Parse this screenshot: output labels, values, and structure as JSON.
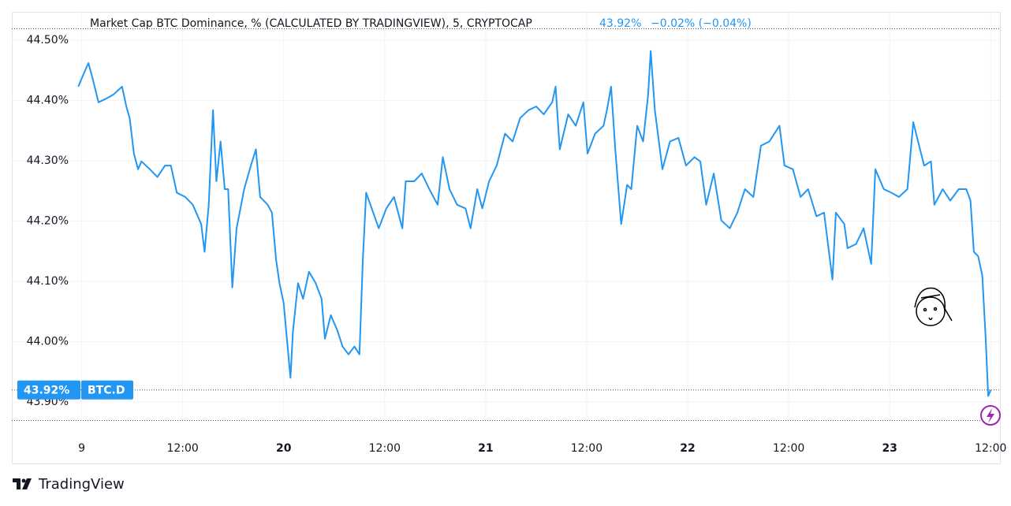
{
  "chart_data": {
    "type": "line",
    "title": "Market Cap BTC Dominance, % (CALCULATED BY TRADINGVIEW), 5, CRYPTOCAP",
    "change": "−0.02% (−0.04%)",
    "last_value": {
      "value": 43.92,
      "label": "43.92%"
    },
    "brand": "TradingView",
    "grid": true,
    "xlim": [
      -8.3,
      109.1
    ],
    "ylim": [
      43.87,
      44.547
    ],
    "yticks": [
      {
        "value": 43.9,
        "label": "43.90%"
      },
      {
        "value": 44.0,
        "label": "44.00%"
      },
      {
        "value": 44.1,
        "label": "44.10%"
      },
      {
        "value": 44.2,
        "label": "44.20%"
      },
      {
        "value": 44.3,
        "label": "44.30%"
      },
      {
        "value": 44.4,
        "label": "44.40%"
      },
      {
        "value": 44.5,
        "label": "44.50%"
      }
    ],
    "xticks": [
      {
        "value": 0,
        "label": "9"
      },
      {
        "value": 12,
        "label": "12:00"
      },
      {
        "value": 24,
        "label": "20"
      },
      {
        "value": 36,
        "label": "12:00"
      },
      {
        "value": 48,
        "label": "21"
      },
      {
        "value": 60,
        "label": "12:00"
      },
      {
        "value": 72,
        "label": "22"
      },
      {
        "value": 84,
        "label": "12:00"
      },
      {
        "value": 96,
        "label": "23"
      },
      {
        "value": 108,
        "label": "12:00"
      }
    ],
    "x": [
      -0.4,
      0.2,
      0.8,
      1.3,
      2.0,
      2.9,
      3.8,
      4.8,
      5.3,
      5.7,
      6.2,
      6.7,
      7.1,
      8.1,
      9.0,
      9.9,
      10.6,
      11.3,
      12.3,
      13.2,
      14.2,
      14.6,
      15.1,
      15.6,
      16.0,
      16.5,
      17.0,
      17.4,
      17.9,
      18.4,
      19.3,
      20.1,
      20.7,
      21.2,
      22.1,
      22.6,
      23.1,
      23.5,
      24.0,
      24.8,
      25.1,
      25.7,
      26.3,
      27.0,
      27.8,
      28.5,
      28.9,
      29.6,
      30.4,
      31.0,
      31.7,
      32.4,
      33.0,
      33.4,
      33.8,
      34.3,
      35.3,
      36.2,
      37.1,
      38.1,
      38.5,
      39.5,
      40.4,
      41.3,
      42.3,
      42.9,
      43.7,
      44.6,
      45.6,
      46.2,
      47.0,
      47.6,
      48.4,
      49.3,
      50.3,
      51.2,
      52.1,
      53.1,
      54.0,
      54.9,
      55.9,
      56.3,
      56.8,
      57.8,
      58.7,
      59.6,
      60.1,
      61.0,
      62.0,
      62.4,
      62.9,
      63.4,
      64.1,
      64.8,
      65.3,
      66.0,
      66.7,
      67.3,
      67.6,
      68.1,
      69.0,
      69.9,
      70.9,
      71.8,
      72.8,
      73.5,
      74.2,
      75.1,
      76.0,
      77.0,
      77.9,
      78.8,
      79.8,
      80.7,
      81.7,
      82.9,
      83.5,
      84.5,
      85.4,
      86.3,
      87.3,
      88.2,
      89.2,
      89.6,
      90.6,
      91.0,
      92.0,
      92.9,
      93.8,
      94.3,
      95.3,
      96.2,
      97.1,
      98.1,
      98.8,
      99.5,
      100.1,
      100.9,
      101.3,
      102.3,
      103.2,
      104.2,
      105.1,
      105.6,
      106.0,
      106.5,
      107.0,
      107.4,
      107.7,
      108.0
    ],
    "series": [
      {
        "name": "BTC.D",
        "color": "#2196f3",
        "values": [
          44.423,
          44.443,
          44.462,
          44.436,
          44.397,
          44.403,
          44.41,
          44.423,
          44.39,
          44.371,
          44.312,
          44.286,
          44.299,
          44.286,
          44.273,
          44.292,
          44.292,
          44.247,
          44.24,
          44.227,
          44.195,
          44.149,
          44.227,
          44.384,
          44.266,
          44.332,
          44.253,
          44.253,
          44.09,
          44.188,
          44.253,
          44.292,
          44.319,
          44.24,
          44.227,
          44.214,
          44.136,
          44.097,
          44.064,
          43.94,
          44.018,
          44.097,
          44.071,
          44.116,
          44.097,
          44.071,
          44.005,
          44.044,
          44.018,
          43.992,
          43.979,
          43.992,
          43.979,
          44.136,
          44.247,
          44.227,
          44.188,
          44.221,
          44.24,
          44.188,
          44.266,
          44.266,
          44.279,
          44.253,
          44.227,
          44.306,
          44.253,
          44.227,
          44.221,
          44.188,
          44.253,
          44.221,
          44.266,
          44.292,
          44.345,
          44.332,
          44.371,
          44.384,
          44.39,
          44.377,
          44.397,
          44.423,
          44.319,
          44.377,
          44.358,
          44.397,
          44.312,
          44.345,
          44.358,
          44.384,
          44.423,
          44.319,
          44.195,
          44.26,
          44.253,
          44.358,
          44.332,
          44.41,
          44.482,
          44.384,
          44.286,
          44.332,
          44.338,
          44.292,
          44.306,
          44.299,
          44.227,
          44.279,
          44.201,
          44.188,
          44.214,
          44.253,
          44.24,
          44.325,
          44.332,
          44.358,
          44.292,
          44.286,
          44.24,
          44.253,
          44.208,
          44.214,
          44.103,
          44.214,
          44.195,
          44.155,
          44.162,
          44.188,
          44.129,
          44.286,
          44.253,
          44.247,
          44.24,
          44.253,
          44.364,
          44.325,
          44.292,
          44.299,
          44.227,
          44.253,
          44.234,
          44.253,
          44.253,
          44.234,
          44.149,
          44.142,
          44.11,
          44.005,
          43.91,
          43.92
        ]
      }
    ]
  }
}
